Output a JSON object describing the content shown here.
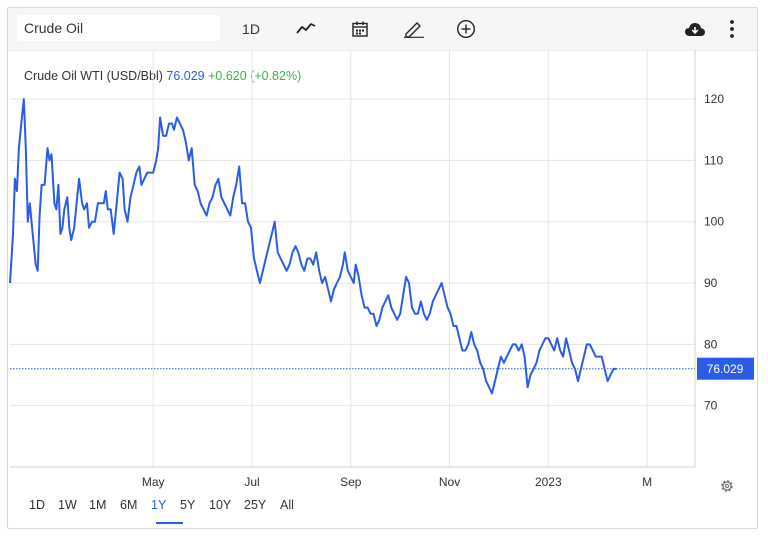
{
  "toolbar": {
    "symbol": "Crude Oil",
    "interval": "1D",
    "icons": [
      "line-chart-icon",
      "calendar-icon",
      "pencil-icon",
      "plus-circle-icon",
      "download-cloud-icon",
      "more-vertical-icon"
    ]
  },
  "quote": {
    "name": "Crude Oil WTI (USD/Bbl)",
    "price": "76.029",
    "change": "+0.620 (+0.82%)"
  },
  "colors": {
    "line": "#2b5ce6",
    "positive": "#3ab14b",
    "grid": "#e6e6e6",
    "badge": "#2b5ce6"
  },
  "ranges": {
    "items": [
      "1D",
      "1W",
      "1M",
      "6M",
      "1Y",
      "5Y",
      "10Y",
      "25Y",
      "All"
    ],
    "active": "1Y"
  },
  "chart_data": {
    "type": "line",
    "title": "Crude Oil WTI (USD/Bbl)",
    "last_value_label": "76.029",
    "ylim": [
      60,
      128
    ],
    "yticks": [
      70,
      80,
      90,
      100,
      110,
      120
    ],
    "xlim": [
      -0.9,
      12.97
    ],
    "xticks": [
      {
        "at": 2,
        "label": "May"
      },
      {
        "at": 4,
        "label": "Jul"
      },
      {
        "at": 6,
        "label": "Sep"
      },
      {
        "at": 8,
        "label": "Nov"
      },
      {
        "at": 10,
        "label": "2023"
      },
      {
        "at": 12,
        "label": "M"
      }
    ],
    "grid": true,
    "series": [
      {
        "values": [
          [
            -0.9,
            90
          ],
          [
            -0.84,
            98
          ],
          [
            -0.8,
            107
          ],
          [
            -0.76,
            105
          ],
          [
            -0.72,
            112
          ],
          [
            -0.66,
            117
          ],
          [
            -0.62,
            120
          ],
          [
            -0.58,
            112
          ],
          [
            -0.54,
            100
          ],
          [
            -0.5,
            103
          ],
          [
            -0.44,
            98
          ],
          [
            -0.38,
            93
          ],
          [
            -0.34,
            92
          ],
          [
            -0.3,
            101
          ],
          [
            -0.26,
            106
          ],
          [
            -0.2,
            106
          ],
          [
            -0.14,
            112
          ],
          [
            -0.1,
            110
          ],
          [
            -0.06,
            111
          ],
          [
            0.0,
            103
          ],
          [
            0.04,
            102
          ],
          [
            0.08,
            106
          ],
          [
            0.12,
            98
          ],
          [
            0.16,
            99
          ],
          [
            0.2,
            102
          ],
          [
            0.26,
            104
          ],
          [
            0.3,
            99
          ],
          [
            0.34,
            97
          ],
          [
            0.4,
            99
          ],
          [
            0.46,
            104
          ],
          [
            0.5,
            107
          ],
          [
            0.56,
            103
          ],
          [
            0.6,
            102
          ],
          [
            0.66,
            103
          ],
          [
            0.7,
            99
          ],
          [
            0.76,
            100
          ],
          [
            0.82,
            100
          ],
          [
            0.88,
            103
          ],
          [
            0.94,
            103
          ],
          [
            1.0,
            103
          ],
          [
            1.04,
            105
          ],
          [
            1.08,
            102
          ],
          [
            1.14,
            102
          ],
          [
            1.2,
            98
          ],
          [
            1.26,
            103
          ],
          [
            1.32,
            108
          ],
          [
            1.38,
            107
          ],
          [
            1.42,
            102
          ],
          [
            1.48,
            100
          ],
          [
            1.54,
            104
          ],
          [
            1.6,
            106
          ],
          [
            1.66,
            108
          ],
          [
            1.72,
            109
          ],
          [
            1.76,
            106
          ],
          [
            1.82,
            107
          ],
          [
            1.88,
            108
          ],
          [
            1.94,
            108
          ],
          [
            2.0,
            108
          ],
          [
            2.06,
            110
          ],
          [
            2.1,
            112
          ],
          [
            2.14,
            117
          ],
          [
            2.2,
            114
          ],
          [
            2.26,
            114
          ],
          [
            2.32,
            116
          ],
          [
            2.38,
            116
          ],
          [
            2.42,
            115
          ],
          [
            2.48,
            117
          ],
          [
            2.54,
            116
          ],
          [
            2.6,
            115
          ],
          [
            2.66,
            113
          ],
          [
            2.72,
            110
          ],
          [
            2.78,
            112
          ],
          [
            2.84,
            106
          ],
          [
            2.9,
            105
          ],
          [
            2.96,
            103
          ],
          [
            3.02,
            102
          ],
          [
            3.08,
            101
          ],
          [
            3.14,
            103
          ],
          [
            3.2,
            104
          ],
          [
            3.26,
            106
          ],
          [
            3.32,
            107
          ],
          [
            3.38,
            104
          ],
          [
            3.44,
            103
          ],
          [
            3.5,
            102
          ],
          [
            3.56,
            101
          ],
          [
            3.62,
            104
          ],
          [
            3.68,
            106
          ],
          [
            3.74,
            109
          ],
          [
            3.8,
            103
          ],
          [
            3.86,
            103
          ],
          [
            3.92,
            100
          ],
          [
            3.98,
            99
          ],
          [
            4.04,
            94
          ],
          [
            4.1,
            92
          ],
          [
            4.16,
            90
          ],
          [
            4.22,
            92
          ],
          [
            4.28,
            94
          ],
          [
            4.34,
            96
          ],
          [
            4.4,
            98
          ],
          [
            4.46,
            100
          ],
          [
            4.52,
            95
          ],
          [
            4.58,
            94
          ],
          [
            4.64,
            93
          ],
          [
            4.7,
            92
          ],
          [
            4.76,
            93
          ],
          [
            4.82,
            95
          ],
          [
            4.88,
            96
          ],
          [
            4.94,
            95
          ],
          [
            5.0,
            93
          ],
          [
            5.06,
            92
          ],
          [
            5.12,
            94
          ],
          [
            5.18,
            94
          ],
          [
            5.24,
            93
          ],
          [
            5.3,
            95
          ],
          [
            5.36,
            92
          ],
          [
            5.42,
            90
          ],
          [
            5.48,
            91
          ],
          [
            5.54,
            89
          ],
          [
            5.6,
            87
          ],
          [
            5.66,
            89
          ],
          [
            5.72,
            90
          ],
          [
            5.78,
            91
          ],
          [
            5.84,
            93
          ],
          [
            5.88,
            95
          ],
          [
            5.94,
            92
          ],
          [
            6.0,
            91
          ],
          [
            6.06,
            90
          ],
          [
            6.1,
            93
          ],
          [
            6.16,
            91
          ],
          [
            6.22,
            88
          ],
          [
            6.28,
            86
          ],
          [
            6.34,
            86
          ],
          [
            6.4,
            85
          ],
          [
            6.46,
            85
          ],
          [
            6.52,
            83
          ],
          [
            6.58,
            84
          ],
          [
            6.64,
            86
          ],
          [
            6.7,
            87
          ],
          [
            6.76,
            88
          ],
          [
            6.82,
            86
          ],
          [
            6.88,
            85
          ],
          [
            6.94,
            84
          ],
          [
            7.0,
            85
          ],
          [
            7.06,
            88
          ],
          [
            7.12,
            91
          ],
          [
            7.18,
            90
          ],
          [
            7.24,
            86
          ],
          [
            7.3,
            85
          ],
          [
            7.36,
            85
          ],
          [
            7.42,
            87
          ],
          [
            7.48,
            85
          ],
          [
            7.54,
            84
          ],
          [
            7.6,
            85
          ],
          [
            7.66,
            87
          ],
          [
            7.72,
            88
          ],
          [
            7.78,
            89
          ],
          [
            7.84,
            90
          ],
          [
            7.9,
            88
          ],
          [
            7.96,
            86
          ],
          [
            8.02,
            85
          ],
          [
            8.08,
            83
          ],
          [
            8.14,
            83
          ],
          [
            8.2,
            81
          ],
          [
            8.26,
            79
          ],
          [
            8.32,
            79
          ],
          [
            8.38,
            80
          ],
          [
            8.44,
            82
          ],
          [
            8.5,
            80
          ],
          [
            8.56,
            79
          ],
          [
            8.62,
            77
          ],
          [
            8.68,
            76
          ],
          [
            8.74,
            74
          ],
          [
            8.8,
            73
          ],
          [
            8.86,
            72
          ],
          [
            8.92,
            74
          ],
          [
            8.98,
            76
          ],
          [
            9.04,
            78
          ],
          [
            9.1,
            77
          ],
          [
            9.16,
            78
          ],
          [
            9.22,
            79
          ],
          [
            9.28,
            80
          ],
          [
            9.34,
            80
          ],
          [
            9.4,
            79
          ],
          [
            9.46,
            80
          ],
          [
            9.52,
            78
          ],
          [
            9.58,
            73
          ],
          [
            9.64,
            75
          ],
          [
            9.7,
            76
          ],
          [
            9.76,
            77
          ],
          [
            9.82,
            79
          ],
          [
            9.88,
            80
          ],
          [
            9.94,
            81
          ],
          [
            10.0,
            81
          ],
          [
            10.06,
            80
          ],
          [
            10.12,
            79
          ],
          [
            10.18,
            81
          ],
          [
            10.24,
            79
          ],
          [
            10.3,
            78
          ],
          [
            10.36,
            81
          ],
          [
            10.42,
            79
          ],
          [
            10.48,
            77
          ],
          [
            10.54,
            76
          ],
          [
            10.6,
            74
          ],
          [
            10.66,
            76
          ],
          [
            10.72,
            78
          ],
          [
            10.78,
            80
          ],
          [
            10.84,
            80
          ],
          [
            10.9,
            79
          ],
          [
            10.96,
            78
          ],
          [
            11.02,
            78
          ],
          [
            11.08,
            78
          ],
          [
            11.14,
            76
          ],
          [
            11.2,
            74
          ],
          [
            11.26,
            75
          ],
          [
            11.32,
            76
          ],
          [
            11.38,
            76
          ]
        ]
      }
    ]
  }
}
